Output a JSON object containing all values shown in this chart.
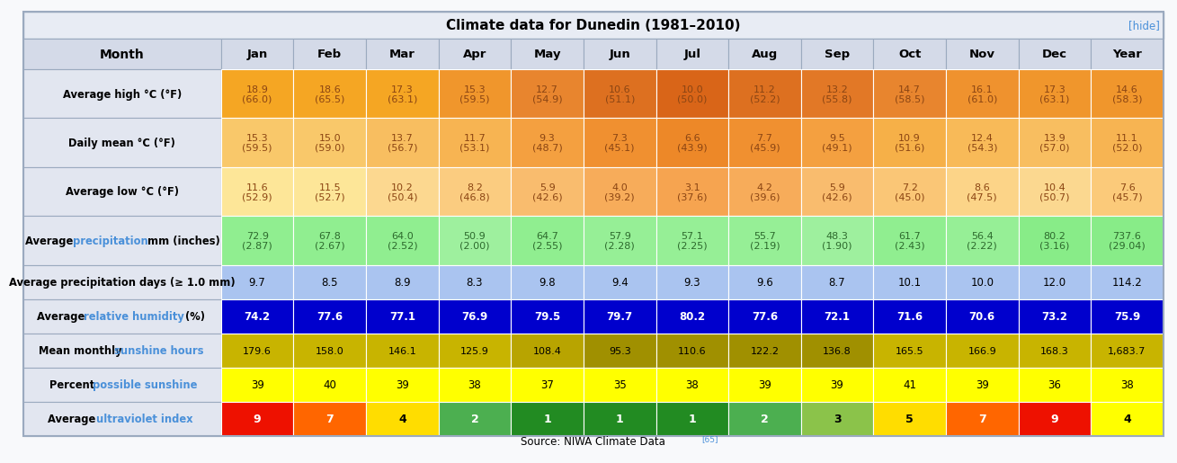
{
  "title": "Climate data for Dunedin (1981–2010)",
  "hide_text": "[hide]",
  "source_text": "Source: NIWA Climate Data",
  "source_superscript": "[65]",
  "months": [
    "Jan",
    "Feb",
    "Mar",
    "Apr",
    "May",
    "Jun",
    "Jul",
    "Aug",
    "Sep",
    "Oct",
    "Nov",
    "Dec",
    "Year"
  ],
  "rows": [
    {
      "label": "Average high °C (°F)",
      "label_colored": null,
      "values": [
        "18.9\n(66.0)",
        "18.6\n(65.5)",
        "17.3\n(63.1)",
        "15.3\n(59.5)",
        "12.7\n(54.9)",
        "10.6\n(51.1)",
        "10.0\n(50.0)",
        "11.2\n(52.2)",
        "13.2\n(55.8)",
        "14.7\n(58.5)",
        "16.1\n(61.0)",
        "17.3\n(63.1)",
        "14.6\n(58.3)"
      ],
      "cell_colors": [
        "#f5a623",
        "#f5a623",
        "#f5a623",
        "#f0962c",
        "#e8852e",
        "#dd7020",
        "#d96518",
        "#dd7020",
        "#e27826",
        "#e8852e",
        "#ef922e",
        "#f0962c",
        "#f0962c"
      ],
      "text_color": "#8b4513",
      "font_style": "normal",
      "val_fontsize": 8.0
    },
    {
      "label": "Daily mean °C (°F)",
      "label_colored": null,
      "values": [
        "15.3\n(59.5)",
        "15.0\n(59.0)",
        "13.7\n(56.7)",
        "11.7\n(53.1)",
        "9.3\n(48.7)",
        "7.3\n(45.1)",
        "6.6\n(43.9)",
        "7.7\n(45.9)",
        "9.5\n(49.1)",
        "10.9\n(51.6)",
        "12.4\n(54.3)",
        "13.9\n(57.0)",
        "11.1\n(52.0)"
      ],
      "cell_colors": [
        "#f9c86a",
        "#f9c86a",
        "#f8be60",
        "#f7b452",
        "#f4a040",
        "#f09030",
        "#ed8828",
        "#f09030",
        "#f4a040",
        "#f6b048",
        "#f8ba58",
        "#f8be60",
        "#f7b452"
      ],
      "text_color": "#8b4513",
      "font_style": "normal",
      "val_fontsize": 8.0
    },
    {
      "label": "Average low °C (°F)",
      "label_colored": null,
      "values": [
        "11.6\n(52.9)",
        "11.5\n(52.7)",
        "10.2\n(50.4)",
        "8.2\n(46.8)",
        "5.9\n(42.6)",
        "4.0\n(39.2)",
        "3.1\n(37.6)",
        "4.2\n(39.6)",
        "5.9\n(42.6)",
        "7.2\n(45.0)",
        "8.6\n(47.5)",
        "10.4\n(50.7)",
        "7.6\n(45.7)"
      ],
      "cell_colors": [
        "#fde698",
        "#fde698",
        "#fcd890",
        "#fbcc80",
        "#f9bc6e",
        "#f7ac5a",
        "#f6a450",
        "#f7ac5a",
        "#f9bc6e",
        "#fac676",
        "#fcd488",
        "#fbd890",
        "#fbca7a"
      ],
      "text_color": "#8b4513",
      "font_style": "normal",
      "val_fontsize": 8.0
    },
    {
      "label": "Average ",
      "label_colored": [
        [
          "Average ",
          "#000000"
        ],
        [
          "precipitation",
          "#4a90d9"
        ],
        [
          " mm (inches)",
          "#000000"
        ]
      ],
      "values": [
        "72.9\n(2.87)",
        "67.8\n(2.67)",
        "64.0\n(2.52)",
        "50.9\n(2.00)",
        "64.7\n(2.55)",
        "57.9\n(2.28)",
        "57.1\n(2.25)",
        "55.7\n(2.19)",
        "48.3\n(1.90)",
        "61.7\n(2.43)",
        "56.4\n(2.22)",
        "80.2\n(3.16)",
        "737.6\n(29.04)"
      ],
      "cell_colors": [
        "#90ee90",
        "#90ee90",
        "#90ee90",
        "#9ef09e",
        "#90ee90",
        "#96ef96",
        "#96ef96",
        "#96ef96",
        "#9ef09e",
        "#90ee90",
        "#96ef96",
        "#88ec88",
        "#88ec88"
      ],
      "text_color": "#2d6a2d",
      "font_style": "normal",
      "val_fontsize": 8.0
    },
    {
      "label": "Average precipitation days (≥ 1.0 mm)",
      "label_colored": null,
      "values": [
        "9.7",
        "8.5",
        "8.9",
        "8.3",
        "9.8",
        "9.4",
        "9.3",
        "9.6",
        "8.7",
        "10.1",
        "10.0",
        "12.0",
        "114.2"
      ],
      "cell_colors": [
        "#aac4f0",
        "#aac4f0",
        "#aac4f0",
        "#aac4f0",
        "#aac4f0",
        "#aac4f0",
        "#aac4f0",
        "#aac4f0",
        "#aac4f0",
        "#aac4f0",
        "#aac4f0",
        "#aac4f0",
        "#aac4f0"
      ],
      "text_color": "#000000",
      "font_style": "normal",
      "val_fontsize": 8.5
    },
    {
      "label": "Average relative humidity (%)",
      "label_colored": [
        [
          "Average ",
          "#000000"
        ],
        [
          "relative humidity",
          "#4a90d9"
        ],
        [
          " (%)",
          "#000000"
        ]
      ],
      "values": [
        "74.2",
        "77.6",
        "77.1",
        "76.9",
        "79.5",
        "79.7",
        "80.2",
        "77.6",
        "72.1",
        "71.6",
        "70.6",
        "73.2",
        "75.9"
      ],
      "cell_colors": [
        "#0000cd",
        "#0000cd",
        "#0000cd",
        "#0000cd",
        "#0000cd",
        "#0000cd",
        "#0000cd",
        "#0000cd",
        "#0000cd",
        "#0000cd",
        "#0000cd",
        "#0000cd",
        "#0000cd"
      ],
      "text_color": "#ffffff",
      "font_style": "bold",
      "val_fontsize": 8.5
    },
    {
      "label": "Mean monthly sunshine hours",
      "label_colored": [
        [
          "Mean monthly ",
          "#000000"
        ],
        [
          "sunshine hours",
          "#4a90d9"
        ]
      ],
      "values": [
        "179.6",
        "158.0",
        "146.1",
        "125.9",
        "108.4",
        "95.3",
        "110.6",
        "122.2",
        "136.8",
        "165.5",
        "166.9",
        "168.3",
        "1,683.7"
      ],
      "cell_colors": [
        "#c8b400",
        "#c8b400",
        "#c8b400",
        "#c8b400",
        "#b8a400",
        "#a09000",
        "#a09000",
        "#a09000",
        "#a09000",
        "#c8b400",
        "#c8b400",
        "#c8b400",
        "#c8b400"
      ],
      "text_color": "#000000",
      "font_style": "normal",
      "val_fontsize": 8.0
    },
    {
      "label": "Percent possible sunshine",
      "label_colored": [
        [
          "Percent ",
          "#000000"
        ],
        [
          "possible sunshine",
          "#4a90d9"
        ]
      ],
      "values": [
        "39",
        "40",
        "39",
        "38",
        "37",
        "35",
        "38",
        "39",
        "39",
        "41",
        "39",
        "36",
        "38"
      ],
      "cell_colors": [
        "#ffff00",
        "#ffff00",
        "#ffff00",
        "#ffff00",
        "#ffff00",
        "#ffff00",
        "#ffff00",
        "#ffff00",
        "#ffff00",
        "#ffff00",
        "#ffff00",
        "#ffff00",
        "#ffff00"
      ],
      "text_color": "#000000",
      "font_style": "normal",
      "val_fontsize": 8.5
    },
    {
      "label": "Average ultraviolet index",
      "label_colored": [
        [
          "Average ",
          "#000000"
        ],
        [
          "ultraviolet index",
          "#4a90d9"
        ]
      ],
      "values": [
        "9",
        "7",
        "4",
        "2",
        "1",
        "1",
        "1",
        "2",
        "3",
        "5",
        "7",
        "9",
        "4"
      ],
      "cell_colors": [
        "#ee1100",
        "#ff6600",
        "#ffdd00",
        "#4caf50",
        "#228b22",
        "#228b22",
        "#228b22",
        "#4caf50",
        "#8bc34a",
        "#ffdd00",
        "#ff6600",
        "#ee1100",
        "#ffff00"
      ],
      "text_color": "#ffffff",
      "font_style": "bold",
      "val_fontsize": 9.0
    }
  ],
  "uv_text_colors": [
    "#ffffff",
    "#ffffff",
    "#000000",
    "#ffffff",
    "#ffffff",
    "#ffffff",
    "#ffffff",
    "#ffffff",
    "#000000",
    "#000000",
    "#ffffff",
    "#ffffff",
    "#000000"
  ],
  "header_bg": "#d4dae8",
  "label_col_bg": "#e2e6f0",
  "title_bg": "#e8ecf4",
  "fig_bg": "#f8f9fb",
  "border_color": "#9baabf"
}
